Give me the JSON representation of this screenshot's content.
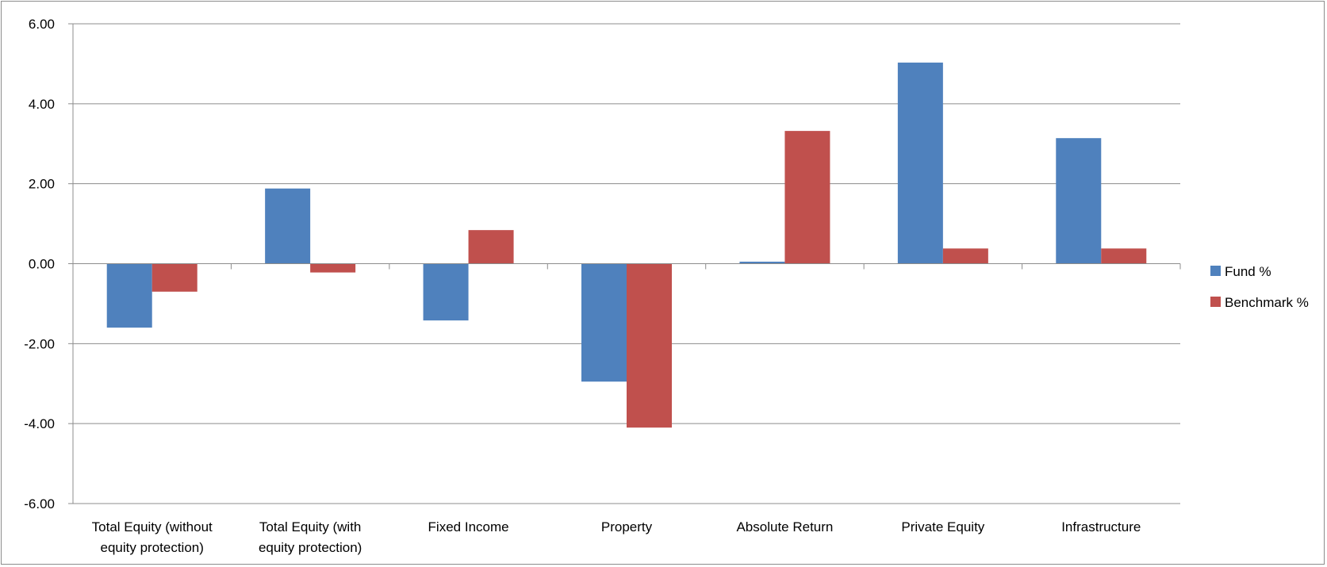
{
  "chart_data": {
    "type": "bar",
    "title": "",
    "xlabel": "",
    "ylabel": "",
    "categories": [
      [
        "Total Equity (without",
        "equity protection)"
      ],
      [
        "Total Equity (with",
        "equity protection)"
      ],
      [
        "Fixed Income"
      ],
      [
        "Property"
      ],
      [
        "Absolute Return"
      ],
      [
        "Private Equity"
      ],
      [
        "Infrastructure"
      ]
    ],
    "series": [
      {
        "name": "Fund %",
        "color": "#4f81bd",
        "values": [
          -1.6,
          1.88,
          -1.42,
          -2.95,
          0.05,
          5.03,
          3.14
        ]
      },
      {
        "name": "Benchmark %",
        "color": "#c0504d",
        "values": [
          -0.7,
          -0.22,
          0.84,
          -4.1,
          3.32,
          0.38,
          0.38
        ]
      }
    ],
    "ylim": [
      -6,
      6
    ],
    "yticks": [
      "6.00",
      "4.00",
      "2.00",
      "0.00",
      "-2.00",
      "-4.00",
      "-6.00"
    ],
    "ytick_values": [
      6,
      4,
      2,
      0,
      -2,
      -4,
      -6
    ],
    "grid": true,
    "legend_position": "right"
  }
}
